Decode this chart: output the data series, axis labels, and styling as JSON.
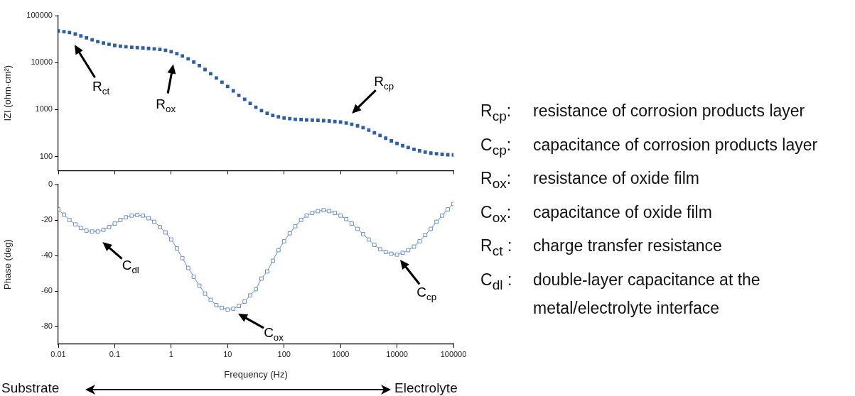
{
  "chart_data": [
    {
      "type": "scatter",
      "ylabel": "IZI (ohm·cm²)",
      "log": "xy",
      "marker": "square",
      "grid": false,
      "legend": false,
      "tick_labels": "y",
      "xlim": [
        0.01,
        100000
      ],
      "xticks": [
        0.01,
        0.1,
        1,
        10,
        100,
        1000,
        10000,
        100000
      ],
      "ylim": [
        50,
        100000
      ],
      "yticks": [
        100,
        1000,
        10000,
        100000
      ],
      "x": [
        0.01,
        0.0126,
        0.0158,
        0.02,
        0.0251,
        0.0316,
        0.0398,
        0.0501,
        0.0631,
        0.0794,
        0.1,
        0.126,
        0.158,
        0.2,
        0.251,
        0.316,
        0.398,
        0.501,
        0.631,
        0.794,
        1,
        1.26,
        1.58,
        2,
        2.51,
        3.16,
        3.98,
        5.01,
        6.31,
        7.94,
        10,
        12.6,
        15.8,
        20,
        25.1,
        31.6,
        39.8,
        50.1,
        63.1,
        79.4,
        100,
        126,
        158,
        200,
        251,
        316,
        398,
        501,
        631,
        794,
        1000,
        1260,
        1580,
        2000,
        2510,
        3160,
        3980,
        5010,
        6310,
        7940,
        10000,
        12600,
        15800,
        20000,
        25100,
        31600,
        39800,
        50100,
        63100,
        79400,
        100000
      ],
      "series": [
        {
          "color": "#2f5f9e",
          "values": [
            47000,
            45500,
            43500,
            40500,
            37000,
            33500,
            30500,
            28000,
            26000,
            24500,
            23200,
            22300,
            21700,
            21200,
            20800,
            20400,
            20000,
            19600,
            19000,
            18200,
            17000,
            15500,
            13800,
            12000,
            10300,
            8600,
            7100,
            5800,
            4700,
            3800,
            3100,
            2500,
            2000,
            1650,
            1350,
            1120,
            950,
            830,
            750,
            700,
            660,
            640,
            620,
            610,
            600,
            595,
            590,
            580,
            570,
            555,
            540,
            515,
            485,
            450,
            410,
            365,
            320,
            280,
            245,
            215,
            190,
            170,
            155,
            142,
            132,
            124,
            118,
            114,
            111,
            109,
            108
          ]
        }
      ],
      "annotations": [
        "R$_{ct}$",
        "R$_{ox}$",
        "R$_{cp}$"
      ]
    },
    {
      "type": "line",
      "xlabel": "Frequency (Hz)",
      "ylabel": "Phase (deg)",
      "log": "x",
      "marker": "square",
      "grid": false,
      "legend": false,
      "xlim": [
        0.01,
        100000
      ],
      "xticks": [
        0.01,
        0.1,
        1,
        10,
        100,
        1000,
        10000,
        100000
      ],
      "ylim": [
        -90,
        0
      ],
      "yticks": [
        0,
        -20,
        -40,
        -60,
        -80
      ],
      "x": [
        0.01,
        0.0126,
        0.0158,
        0.02,
        0.0251,
        0.0316,
        0.0398,
        0.0501,
        0.0631,
        0.0794,
        0.1,
        0.126,
        0.158,
        0.2,
        0.251,
        0.316,
        0.398,
        0.501,
        0.631,
        0.794,
        1,
        1.26,
        1.58,
        2,
        2.51,
        3.16,
        3.98,
        5.01,
        6.31,
        7.94,
        10,
        12.6,
        15.8,
        20,
        25.1,
        31.6,
        39.8,
        50.1,
        63.1,
        79.4,
        100,
        126,
        158,
        200,
        251,
        316,
        398,
        501,
        631,
        794,
        1000,
        1260,
        1580,
        2000,
        2510,
        3160,
        3980,
        5010,
        6310,
        7940,
        10000,
        12600,
        15800,
        20000,
        25100,
        31600,
        39800,
        50100,
        63100,
        79400,
        100000
      ],
      "series": [
        {
          "color": "#6b8fc4",
          "values": [
            -14,
            -17,
            -20,
            -22.5,
            -24.5,
            -26,
            -26.5,
            -26.5,
            -25.5,
            -24,
            -22,
            -20,
            -18.5,
            -17.5,
            -17.2,
            -17.5,
            -19,
            -21,
            -24,
            -27,
            -31,
            -36,
            -41.5,
            -47,
            -52,
            -57,
            -61.5,
            -65,
            -68,
            -69.5,
            -70.5,
            -70,
            -68.5,
            -66,
            -62.5,
            -59,
            -53,
            -49,
            -43,
            -37,
            -32,
            -27.5,
            -23.5,
            -20,
            -17.5,
            -16,
            -15,
            -14.5,
            -15,
            -16,
            -17.5,
            -19.5,
            -22,
            -25,
            -28,
            -31,
            -34,
            -36.5,
            -38,
            -39,
            -39.5,
            -38.5,
            -37,
            -35,
            -32,
            -28.5,
            -25,
            -21,
            -17.5,
            -14,
            -11
          ]
        }
      ],
      "annotations": [
        "C$_{dl}$",
        "C$_{ox}$",
        "C$_{cp}$",
        "Substrate",
        "Electrolyte"
      ]
    },
    {
      "type": "other",
      "annotations": [
        "R$_{cp}$:\tresistance of corrosion products layer",
        "C$_{cp}$:\tcapacitance of corrosion products layer",
        "R$_{ox}$:\tresistance of oxide film",
        "C$_{ox}$:\tcapacitance of oxide film",
        "R$_{ct}$ :\tcharge transfer resistance",
        "C$_{dl}$ :\tdouble-layer capacitance at the\n metal/electrolyte interface"
      ]
    }
  ]
}
